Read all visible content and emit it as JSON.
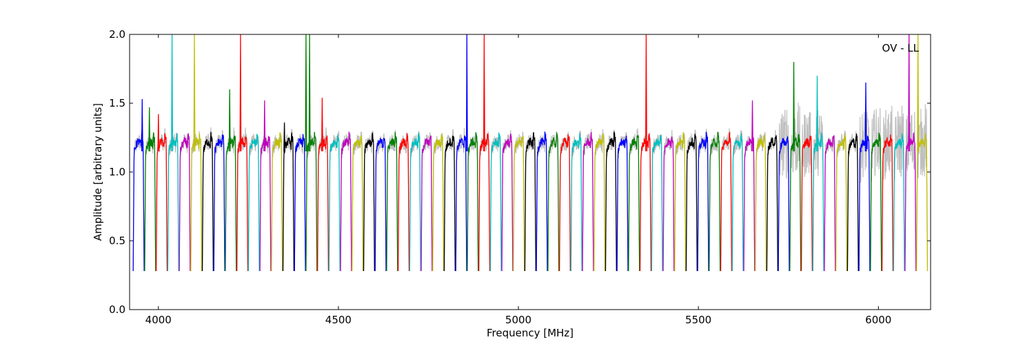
{
  "chart_data": {
    "type": "line",
    "title": "",
    "annotation": "OV - LL",
    "xlabel": "Frequency [MHz]",
    "ylabel": "Amplitude [arbitrary units]",
    "xlim": [
      3920,
      6145
    ],
    "ylim": [
      0.0,
      2.0
    ],
    "xticks": [
      4000,
      4500,
      5000,
      5500,
      6000
    ],
    "yticks": [
      0.0,
      0.5,
      1.0,
      1.5,
      2.0
    ],
    "xtick_labels": [
      "4000",
      "4500",
      "5000",
      "5500",
      "6000"
    ],
    "ytick_labels": [
      "0.0",
      "0.5",
      "1.0",
      "1.5",
      "2.0"
    ],
    "grid": false,
    "band_start": 3930,
    "band_width": 32,
    "band_count": 69,
    "color_cycle": [
      "#0000ff",
      "#008000",
      "#ff0000",
      "#00bfbf",
      "#bf00bf",
      "#bfbf00",
      "#000000"
    ],
    "background_series_color": "#bfbfbf",
    "spikes": [
      {
        "x": 3955,
        "y": 1.53
      },
      {
        "x": 3975,
        "y": 1.47
      },
      {
        "x": 4000,
        "y": 1.42
      },
      {
        "x": 4038,
        "y": 2.0
      },
      {
        "x": 4100,
        "y": 2.0
      },
      {
        "x": 4198,
        "y": 1.6
      },
      {
        "x": 4228,
        "y": 2.0
      },
      {
        "x": 4295,
        "y": 1.52
      },
      {
        "x": 4350,
        "y": 1.36
      },
      {
        "x": 4410,
        "y": 2.0
      },
      {
        "x": 4420,
        "y": 2.0
      },
      {
        "x": 4455,
        "y": 1.54
      },
      {
        "x": 4857,
        "y": 2.0
      },
      {
        "x": 4905,
        "y": 2.0
      },
      {
        "x": 5355,
        "y": 2.0
      },
      {
        "x": 5650,
        "y": 1.52
      },
      {
        "x": 5765,
        "y": 1.8
      },
      {
        "x": 5830,
        "y": 1.7
      },
      {
        "x": 5965,
        "y": 1.65
      },
      {
        "x": 6085,
        "y": 2.0
      },
      {
        "x": 6110,
        "y": 2.0
      }
    ]
  }
}
